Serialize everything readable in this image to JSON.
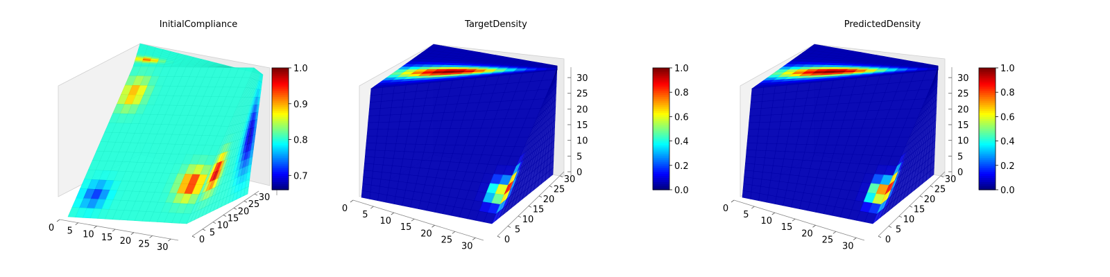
{
  "chart_data": [
    {
      "type": "heatmap",
      "title": "InitialCompliance",
      "cmap": "jet",
      "colorbar": {
        "range": [
          0.66,
          1.0
        ],
        "ticks": [
          "0.7",
          "0.8",
          "0.9",
          "1.0"
        ]
      },
      "axes": {
        "x": {
          "range": [
            0,
            32
          ],
          "ticks": [
            "0",
            "5",
            "10",
            "15",
            "20",
            "25",
            "30"
          ]
        },
        "y": {
          "range": [
            0,
            32
          ],
          "ticks": [
            "0",
            "5",
            "10",
            "15",
            "20",
            "25",
            "30"
          ]
        },
        "z": {
          "range": [
            0,
            32
          ],
          "ticks": []
        }
      },
      "grid": true,
      "field": {
        "base": 0.8,
        "features": [
          {
            "face": "top",
            "u": 0.35,
            "v": 0.1,
            "su": 0.15,
            "sv": 0.12,
            "value": 0.92
          },
          {
            "face": "front",
            "u": 0.1,
            "v": 0.18,
            "su": 0.12,
            "sv": 0.12,
            "value": 0.9
          },
          {
            "face": "front",
            "u": 0.9,
            "v": 0.75,
            "su": 0.12,
            "sv": 0.12,
            "value": 0.95
          },
          {
            "face": "front",
            "u": 0.15,
            "v": 0.85,
            "su": 0.12,
            "sv": 0.1,
            "value": 0.72
          },
          {
            "face": "side",
            "u": 0.2,
            "v": 0.7,
            "su": 0.15,
            "sv": 0.15,
            "value": 0.98
          },
          {
            "face": "side",
            "u": 0.85,
            "v": 0.5,
            "su": 0.18,
            "sv": 0.35,
            "value": 0.68
          }
        ]
      }
    },
    {
      "type": "heatmap",
      "title": "TargetDensity",
      "cmap": "jet",
      "colorbar": {
        "range": [
          0,
          1.0
        ],
        "ticks": [
          "0.0",
          "0.2",
          "0.4",
          "0.6",
          "0.8",
          "1.0"
        ]
      },
      "axes": {
        "x": {
          "range": [
            0,
            32
          ],
          "ticks": [
            "0",
            "5",
            "10",
            "15",
            "20",
            "25",
            "30"
          ]
        },
        "y": {
          "range": [
            0,
            32
          ],
          "ticks": [
            "0",
            "5",
            "10",
            "15",
            "20",
            "25",
            "30"
          ]
        },
        "z": {
          "range": [
            0,
            32
          ],
          "ticks": [
            "0",
            "5",
            "10",
            "15",
            "20",
            "25",
            "30"
          ]
        }
      },
      "grid": true,
      "field": {
        "base": 0.05,
        "features": [
          {
            "face": "top",
            "u": 0.35,
            "v": 0.35,
            "su": 0.2,
            "sv": 0.45,
            "value": 1.0
          },
          {
            "face": "front",
            "u": 0.95,
            "v": 0.8,
            "su": 0.07,
            "sv": 0.1,
            "value": 0.7
          },
          {
            "face": "side",
            "u": 0.06,
            "v": 0.78,
            "su": 0.1,
            "sv": 0.14,
            "value": 1.0
          }
        ]
      }
    },
    {
      "type": "heatmap",
      "title": "PredictedDensity",
      "cmap": "jet",
      "colorbar": {
        "range": [
          0,
          1.0
        ],
        "ticks": [
          "0.0",
          "0.2",
          "0.4",
          "0.6",
          "0.8",
          "1.0"
        ]
      },
      "axes": {
        "x": {
          "range": [
            0,
            32
          ],
          "ticks": [
            "0",
            "5",
            "10",
            "15",
            "20",
            "25",
            "30"
          ]
        },
        "y": {
          "range": [
            0,
            32
          ],
          "ticks": [
            "0",
            "5",
            "10",
            "15",
            "20",
            "25",
            "30"
          ]
        },
        "z": {
          "range": [
            0,
            32
          ],
          "ticks": [
            "0",
            "5",
            "10",
            "15",
            "20",
            "25",
            "30"
          ]
        }
      },
      "grid": true,
      "field": {
        "base": 0.05,
        "features": [
          {
            "face": "top",
            "u": 0.35,
            "v": 0.35,
            "su": 0.2,
            "sv": 0.45,
            "value": 1.0
          },
          {
            "face": "front",
            "u": 0.95,
            "v": 0.8,
            "su": 0.07,
            "sv": 0.1,
            "value": 0.85
          },
          {
            "face": "side",
            "u": 0.06,
            "v": 0.78,
            "su": 0.1,
            "sv": 0.14,
            "value": 1.0
          }
        ]
      }
    }
  ]
}
